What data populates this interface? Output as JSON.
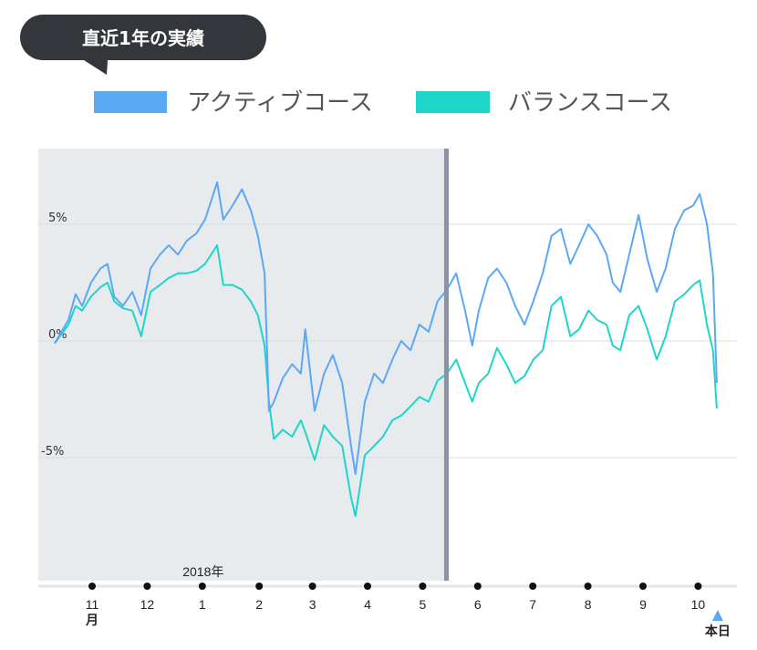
{
  "header": {
    "title": "直近1年の実績"
  },
  "colors": {
    "active": "#5ba8f5",
    "balance": "#1dd5c9",
    "bubble": "#33363a",
    "past_region": "#e8ebee",
    "divider": "#8a93a6",
    "today_marker": "#5ba8f5"
  },
  "chart_data": {
    "type": "line",
    "title": "直近1年の実績",
    "xlabel": "",
    "ylabel": "",
    "ylim": [
      -10.5,
      8.1
    ],
    "yticks": [
      {
        "value": 5,
        "label": "5%"
      },
      {
        "value": 0,
        "label": "0%"
      },
      {
        "value": -5,
        "label": "-5%"
      }
    ],
    "grid": true,
    "legend_placement": "top",
    "x_unit": "months since November 2017",
    "xlim": [
      -0.98,
      11.7
    ],
    "xticks": [
      {
        "value": 0,
        "label": "11"
      },
      {
        "value": 1,
        "label": "12"
      },
      {
        "value": 2,
        "label": "1"
      },
      {
        "value": 3,
        "label": "2"
      },
      {
        "value": 4,
        "label": "3"
      },
      {
        "value": 5,
        "label": "4"
      },
      {
        "value": 6,
        "label": "5"
      },
      {
        "value": 7,
        "label": "6"
      },
      {
        "value": 8,
        "label": "7"
      },
      {
        "value": 9,
        "label": "8"
      },
      {
        "value": 10,
        "label": "9"
      },
      {
        "value": 11,
        "label": "10"
      }
    ],
    "month_unit_label": "月",
    "year_label": "2018年",
    "year_label_at": 2,
    "today_label": "本日",
    "today_at": 11.34,
    "past_region_end": 6.44,
    "x": [
      -0.68,
      -0.43,
      -0.3,
      -0.18,
      -0.02,
      0.15,
      0.28,
      0.4,
      0.56,
      0.73,
      0.89,
      1.06,
      1.23,
      1.39,
      1.56,
      1.72,
      1.89,
      2.05,
      2.27,
      2.38,
      2.55,
      2.72,
      2.88,
      3.01,
      3.13,
      3.21,
      3.3,
      3.46,
      3.63,
      3.79,
      3.87,
      4.04,
      4.21,
      4.37,
      4.54,
      4.7,
      4.78,
      4.95,
      5.12,
      5.28,
      5.45,
      5.61,
      5.78,
      5.94,
      6.11,
      6.27,
      6.44,
      6.61,
      6.77,
      6.9,
      7.02,
      7.19,
      7.35,
      7.52,
      7.68,
      7.85,
      8.01,
      8.18,
      8.34,
      8.51,
      8.68,
      8.84,
      9.01,
      9.17,
      9.34,
      9.45,
      9.59,
      9.75,
      9.92,
      10.08,
      10.25,
      10.41,
      10.58,
      10.75,
      10.91,
      11.03,
      11.16,
      11.27,
      11.34
    ],
    "series": [
      {
        "name": "アクティブコース",
        "color": "#5ba8f5",
        "values": [
          -0.1,
          0.9,
          2.0,
          1.5,
          2.5,
          3.1,
          3.3,
          1.9,
          1.5,
          2.1,
          1.1,
          3.1,
          3.7,
          4.1,
          3.7,
          4.3,
          4.6,
          5.2,
          6.8,
          5.2,
          5.8,
          6.5,
          5.6,
          4.5,
          2.9,
          -3.0,
          -2.6,
          -1.6,
          -1.0,
          -1.4,
          0.5,
          -3.0,
          -1.4,
          -0.6,
          -1.8,
          -4.5,
          -5.7,
          -2.6,
          -1.4,
          -1.8,
          -0.8,
          0.0,
          -0.4,
          0.7,
          0.4,
          1.7,
          2.2,
          2.9,
          1.3,
          -0.2,
          1.3,
          2.7,
          3.1,
          2.5,
          1.5,
          0.7,
          1.7,
          2.9,
          4.5,
          4.8,
          3.3,
          4.1,
          5.0,
          4.5,
          3.7,
          2.5,
          2.1,
          3.7,
          5.4,
          3.5,
          2.1,
          3.1,
          4.8,
          5.6,
          5.8,
          6.3,
          5.0,
          2.9,
          -1.8
        ]
      },
      {
        "name": "バランスコース",
        "color": "#1dd5c9",
        "values": [
          -0.1,
          0.7,
          1.5,
          1.3,
          1.9,
          2.3,
          2.5,
          1.7,
          1.4,
          1.3,
          0.2,
          2.1,
          2.4,
          2.7,
          2.9,
          2.9,
          3.0,
          3.3,
          4.1,
          2.4,
          2.4,
          2.2,
          1.7,
          1.1,
          -0.2,
          -2.6,
          -4.2,
          -3.8,
          -4.1,
          -3.4,
          -3.9,
          -5.1,
          -3.6,
          -4.1,
          -4.5,
          -6.7,
          -7.5,
          -4.9,
          -4.5,
          -4.1,
          -3.4,
          -3.2,
          -2.8,
          -2.4,
          -2.6,
          -1.7,
          -1.4,
          -0.8,
          -1.8,
          -2.6,
          -1.8,
          -1.4,
          -0.3,
          -1.0,
          -1.8,
          -1.5,
          -0.8,
          -0.4,
          1.5,
          1.9,
          0.2,
          0.5,
          1.3,
          0.9,
          0.7,
          -0.2,
          -0.4,
          1.1,
          1.5,
          0.5,
          -0.8,
          0.2,
          1.7,
          2.0,
          2.4,
          2.6,
          0.7,
          -0.4,
          -2.9
        ]
      }
    ]
  }
}
